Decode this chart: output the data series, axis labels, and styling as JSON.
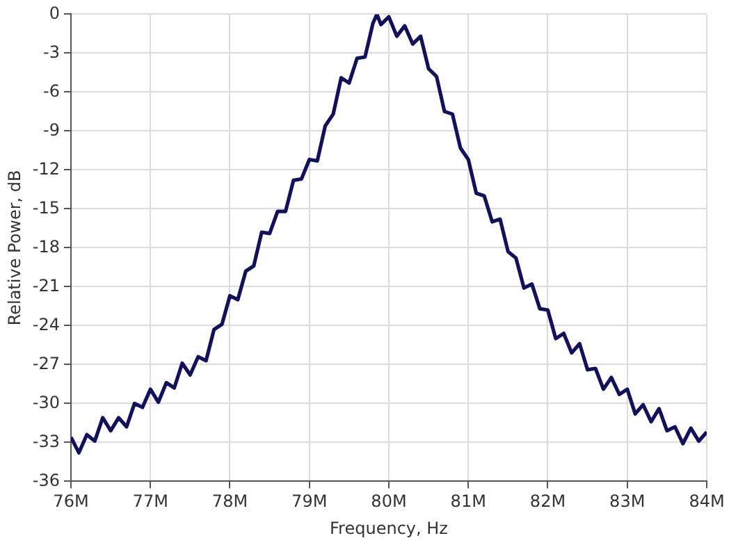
{
  "chart_data": {
    "type": "line",
    "xlabel": "Frequency, Hz",
    "ylabel": "Relative Power, dB",
    "x": [
      76000000,
      76100000,
      76200000,
      76300000,
      76400000,
      76500000,
      76600000,
      76700000,
      76800000,
      76900000,
      77000000,
      77100000,
      77200000,
      77300000,
      77400000,
      77500000,
      77600000,
      77700000,
      77800000,
      77900000,
      78000000,
      78100000,
      78200000,
      78300000,
      78400000,
      78500000,
      78600000,
      78700000,
      78800000,
      78900000,
      79000000,
      79100000,
      79200000,
      79300000,
      79400000,
      79500000,
      79600000,
      79700000,
      79800000,
      79850000,
      79900000,
      80000000,
      80100000,
      80200000,
      80300000,
      80400000,
      80500000,
      80600000,
      80700000,
      80800000,
      80900000,
      81000000,
      81100000,
      81200000,
      81300000,
      81400000,
      81500000,
      81600000,
      81700000,
      81800000,
      81900000,
      82000000,
      82100000,
      82200000,
      82300000,
      82400000,
      82500000,
      82600000,
      82700000,
      82800000,
      82900000,
      83000000,
      83100000,
      83200000,
      83300000,
      83400000,
      83500000,
      83600000,
      83700000,
      83800000,
      83900000,
      84000000
    ],
    "series": [
      {
        "color": "#11115e",
        "values": [
          -32.6,
          -33.8,
          -32.4,
          -32.9,
          -31.1,
          -32.1,
          -31.1,
          -31.8,
          -30.0,
          -30.3,
          -28.9,
          -29.9,
          -28.4,
          -28.8,
          -26.9,
          -27.8,
          -26.4,
          -26.7,
          -24.3,
          -23.9,
          -21.7,
          -22.0,
          -19.8,
          -19.4,
          -16.8,
          -16.9,
          -15.2,
          -15.2,
          -12.8,
          -12.7,
          -11.2,
          -11.3,
          -8.6,
          -7.7,
          -4.9,
          -5.3,
          -3.4,
          -3.3,
          -0.7,
          0,
          -0.8,
          -0.2,
          -1.7,
          -0.9,
          -2.3,
          -1.7,
          -4.2,
          -4.8,
          -7.5,
          -7.7,
          -10.3,
          -11.2,
          -13.8,
          -14.0,
          -16.0,
          -15.8,
          -18.3,
          -18.8,
          -21.1,
          -20.8,
          -22.7,
          -22.8,
          -25.0,
          -24.6,
          -26.1,
          -25.4,
          -27.4,
          -27.3,
          -28.9,
          -28.0,
          -29.3,
          -28.9,
          -30.8,
          -30.1,
          -31.4,
          -30.4,
          -32.1,
          -31.8,
          -33.1,
          -31.9,
          -32.9,
          -32.2
        ]
      }
    ],
    "xlim": [
      76000000,
      84000000
    ],
    "xticks": [
      {
        "value": 76000000,
        "label": "76M"
      },
      {
        "value": 77000000,
        "label": "77M"
      },
      {
        "value": 78000000,
        "label": "78M"
      },
      {
        "value": 79000000,
        "label": "79M"
      },
      {
        "value": 80000000,
        "label": "80M"
      },
      {
        "value": 81000000,
        "label": "81M"
      },
      {
        "value": 82000000,
        "label": "82M"
      },
      {
        "value": 83000000,
        "label": "83M"
      },
      {
        "value": 84000000,
        "label": "84M"
      }
    ],
    "ylim": [
      -36,
      0
    ],
    "yticks": [
      -36,
      -33,
      -30,
      -27,
      -24,
      -21,
      -18,
      -15,
      -12,
      -9,
      -6,
      -3,
      0
    ],
    "grid": true,
    "legend": false,
    "marker": "none",
    "line_style": "solid"
  }
}
